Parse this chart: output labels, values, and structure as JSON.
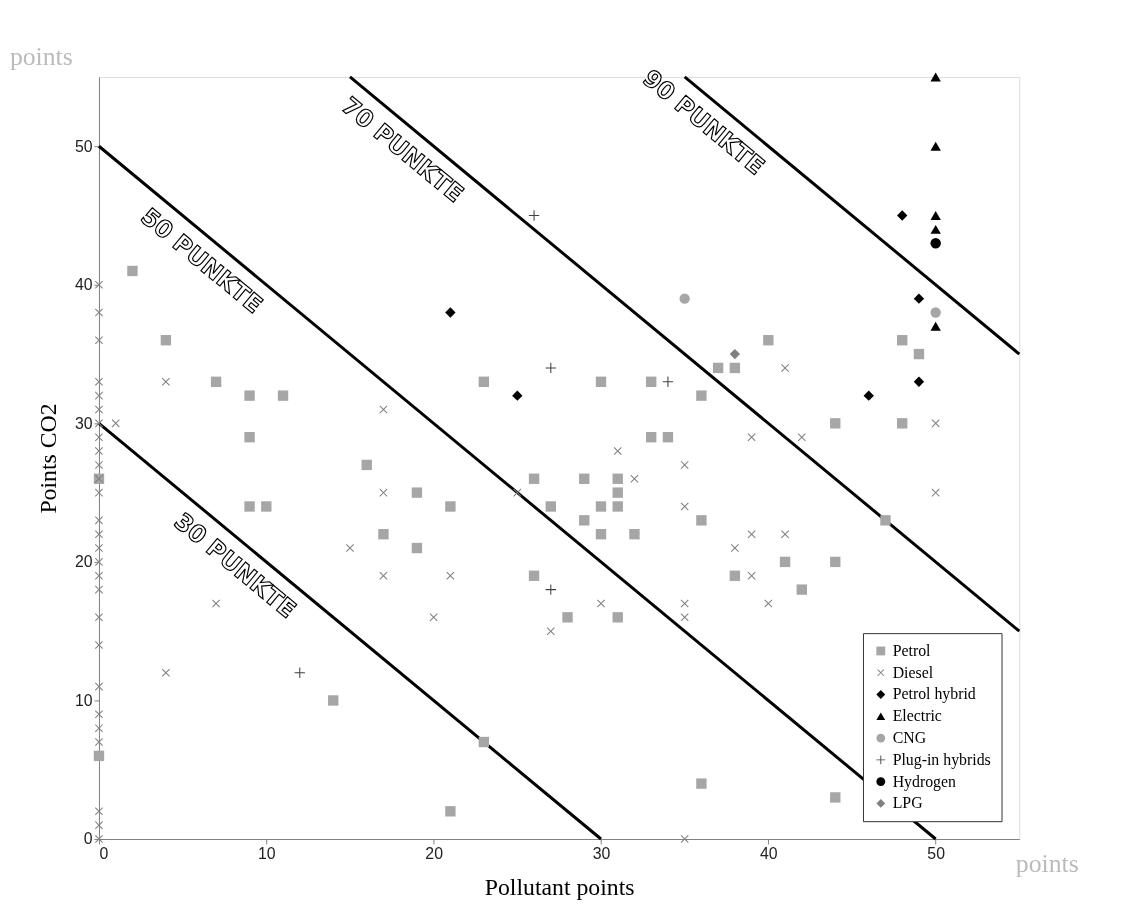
{
  "chart_data": {
    "type": "scatter",
    "xlabel": "Pollutant points",
    "ylabel": "Points CO2",
    "xlim": [
      0,
      55
    ],
    "ylim": [
      0,
      55
    ],
    "xticks": [
      0,
      10,
      20,
      30,
      40,
      50
    ],
    "yticks": [
      0,
      10,
      20,
      30,
      40,
      50
    ],
    "grid": false,
    "legend": "bottom right",
    "series": [
      {
        "name": "Petrol",
        "color": "#a6a6a6",
        "marker": "square",
        "x": [
          2,
          4,
          7,
          9,
          9,
          9,
          10,
          0,
          0,
          14,
          16,
          17,
          19,
          19,
          21,
          23,
          23,
          21,
          26,
          26,
          27,
          28,
          29,
          29,
          30,
          30,
          30,
          31,
          31,
          31,
          31,
          32,
          33,
          33,
          34,
          36,
          36,
          36,
          37,
          38,
          38,
          40,
          41,
          42,
          44,
          44,
          44,
          47,
          48,
          48,
          49,
          11
        ],
        "values": [
          41,
          36,
          33,
          32,
          29,
          24,
          24,
          6,
          26,
          10,
          27,
          22,
          25,
          21,
          24,
          33,
          7,
          2,
          26,
          19,
          24,
          16,
          26,
          23,
          24,
          22,
          33,
          26,
          25,
          24,
          16,
          22,
          33,
          29,
          29,
          32,
          23,
          4,
          34,
          34,
          19,
          36,
          20,
          18,
          30,
          20,
          3,
          23,
          36,
          30,
          35,
          32
        ]
      },
      {
        "name": "Diesel",
        "color": "#808080",
        "marker": "x",
        "x": [
          0,
          0,
          0,
          0,
          0,
          0,
          0,
          0,
          0,
          0,
          0,
          0,
          0,
          0,
          0,
          0,
          0,
          0,
          0,
          0,
          0,
          0,
          0,
          0,
          0,
          0,
          0,
          1,
          4,
          4,
          7,
          15,
          17,
          17,
          17,
          20,
          21,
          25,
          27,
          30,
          31,
          32,
          35,
          35,
          35,
          35,
          35,
          38,
          39,
          39,
          39,
          40,
          41,
          41,
          42,
          50,
          50
        ],
        "values": [
          40,
          38,
          36,
          33,
          32,
          31,
          30,
          29,
          28,
          27,
          26,
          25,
          23,
          22,
          21,
          20,
          19,
          18,
          16,
          14,
          11,
          9,
          8,
          7,
          2,
          1,
          0,
          30,
          33,
          12,
          17,
          21,
          31,
          25,
          19,
          16,
          19,
          25,
          15,
          17,
          28,
          26,
          27,
          24,
          17,
          16,
          0,
          21,
          29,
          22,
          19,
          17,
          34,
          22,
          29,
          30,
          25
        ]
      },
      {
        "name": "Petrol hybrid",
        "color": "#000000",
        "marker": "diamond",
        "x": [
          21,
          25,
          48,
          49,
          49,
          46
        ],
        "values": [
          38,
          32,
          45,
          39,
          33,
          32
        ]
      },
      {
        "name": "Electric",
        "color": "#000000",
        "marker": "triangle",
        "x": [
          50,
          50,
          50,
          50,
          50
        ],
        "values": [
          55,
          50,
          45,
          44,
          37
        ]
      },
      {
        "name": "CNG",
        "color": "#a6a6a6",
        "marker": "circle",
        "x": [
          35,
          50
        ],
        "values": [
          39,
          38
        ]
      },
      {
        "name": "Plug-in hybrids",
        "color": "#404040",
        "marker": "cross",
        "x": [
          26,
          27,
          34,
          27,
          12
        ],
        "values": [
          45,
          34,
          33,
          18,
          12
        ]
      },
      {
        "name": "Hydrogen",
        "color": "#000000",
        "marker": "circle",
        "x": [
          50
        ],
        "values": [
          43
        ]
      },
      {
        "name": "LPG",
        "color": "#808080",
        "marker": "diamond",
        "x": [
          38
        ],
        "values": [
          35
        ]
      },
      {
        "type": "line",
        "color": "#000000",
        "marker": "none",
        "x": [
          0,
          30
        ],
        "values": [
          30,
          0
        ]
      },
      {
        "type": "line",
        "color": "#000000",
        "marker": "none",
        "x": [
          0,
          50
        ],
        "values": [
          50,
          0
        ]
      },
      {
        "type": "line",
        "color": "#000000",
        "marker": "none",
        "x": [
          15,
          55
        ],
        "values": [
          55,
          15
        ]
      },
      {
        "type": "line",
        "color": "#000000",
        "marker": "none",
        "x": [
          35,
          55
        ],
        "values": [
          55,
          35
        ]
      }
    ],
    "annotations": [
      "30 PUNKTE",
      "50 PUNKTE",
      "70 PUNKTE",
      "90 PUNKTE",
      "points",
      "points"
    ]
  }
}
